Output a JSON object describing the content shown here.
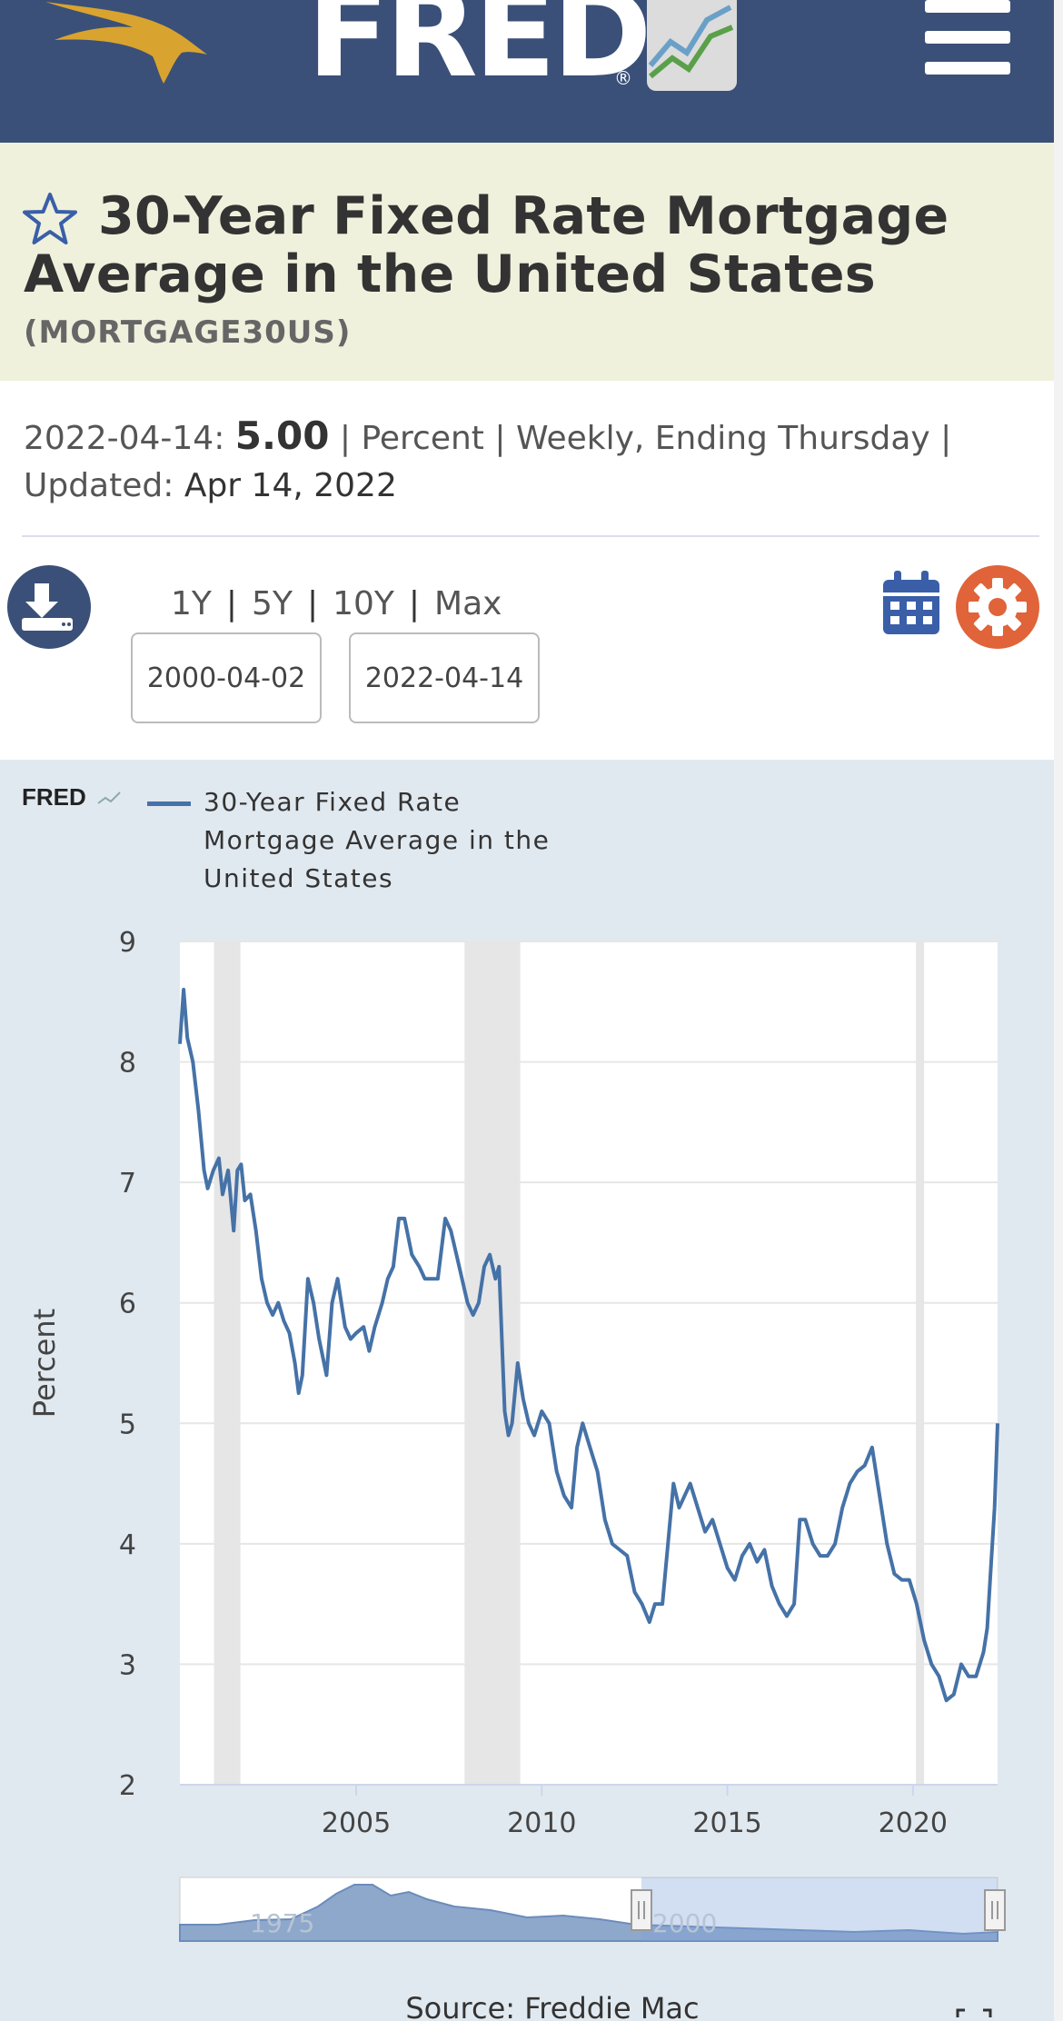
{
  "header": {
    "logo_text": "FRED",
    "logo_reg": "®",
    "colors": {
      "bg": "#3a5078",
      "eagle": "#d9a32f"
    }
  },
  "series": {
    "title": "30-Year Fixed Rate Mortgage Average in the United States",
    "id": "(MORTGAGE30US)"
  },
  "meta": {
    "date": "2022-04-14",
    "value": "5.00",
    "units": "Percent",
    "frequency": "Weekly, Ending Thursday",
    "updated_label": "Updated:",
    "updated": "Apr 14, 2022"
  },
  "controls": {
    "ranges": [
      "1Y",
      "5Y",
      "10Y",
      "Max"
    ],
    "start_date": "2000-04-02",
    "end_date": "2022-04-14"
  },
  "chart_data": {
    "type": "line",
    "brand": "FRED",
    "legend": [
      "30-Year Fixed Rate",
      "Mortgage Average in the",
      "United States"
    ],
    "ylabel": "Percent",
    "yticks": [
      "9",
      "8",
      "7",
      "6",
      "5",
      "4",
      "3",
      "2"
    ],
    "xticks": [
      "2005",
      "2010",
      "2015",
      "2020"
    ],
    "ylim": [
      2,
      9
    ],
    "xlim": [
      2000.25,
      2022.28
    ],
    "recessions": [
      [
        2001.17,
        2001.88
      ],
      [
        2007.92,
        2009.42
      ],
      [
        2020.08,
        2020.3
      ]
    ],
    "series": [
      {
        "color": "#4572a7",
        "x": [
          2000.25,
          2000.35,
          2000.45,
          2000.6,
          2000.75,
          2000.9,
          2001.0,
          2001.15,
          2001.3,
          2001.4,
          2001.55,
          2001.7,
          2001.8,
          2001.9,
          2002.0,
          2002.15,
          2002.3,
          2002.45,
          2002.6,
          2002.75,
          2002.9,
          2003.05,
          2003.2,
          2003.35,
          2003.45,
          2003.55,
          2003.7,
          2003.85,
          2004.0,
          2004.2,
          2004.35,
          2004.5,
          2004.7,
          2004.85,
          2005.0,
          2005.2,
          2005.35,
          2005.5,
          2005.7,
          2005.85,
          2006.0,
          2006.15,
          2006.3,
          2006.5,
          2006.7,
          2006.85,
          2007.0,
          2007.2,
          2007.4,
          2007.55,
          2007.7,
          2007.85,
          2008.0,
          2008.15,
          2008.3,
          2008.45,
          2008.6,
          2008.75,
          2008.85,
          2008.95,
          2009.0,
          2009.1,
          2009.2,
          2009.35,
          2009.5,
          2009.65,
          2009.8,
          2010.0,
          2010.2,
          2010.4,
          2010.6,
          2010.8,
          2010.95,
          2011.1,
          2011.3,
          2011.5,
          2011.7,
          2011.9,
          2012.1,
          2012.3,
          2012.5,
          2012.7,
          2012.9,
          2013.05,
          2013.25,
          2013.4,
          2013.55,
          2013.7,
          2013.85,
          2014.0,
          2014.2,
          2014.4,
          2014.6,
          2014.8,
          2015.0,
          2015.2,
          2015.4,
          2015.6,
          2015.8,
          2016.0,
          2016.2,
          2016.4,
          2016.6,
          2016.8,
          2016.95,
          2017.1,
          2017.3,
          2017.5,
          2017.7,
          2017.9,
          2018.1,
          2018.3,
          2018.5,
          2018.7,
          2018.9,
          2019.1,
          2019.3,
          2019.5,
          2019.7,
          2019.9,
          2020.1,
          2020.3,
          2020.5,
          2020.7,
          2020.9,
          2021.1,
          2021.3,
          2021.5,
          2021.7,
          2021.9,
          2022.0,
          2022.1,
          2022.2,
          2022.28
        ],
        "values": [
          8.15,
          8.6,
          8.2,
          8.0,
          7.6,
          7.1,
          6.95,
          7.1,
          7.2,
          6.9,
          7.1,
          6.6,
          7.1,
          7.15,
          6.85,
          6.9,
          6.6,
          6.2,
          6.0,
          5.9,
          6.0,
          5.85,
          5.75,
          5.5,
          5.25,
          5.4,
          6.2,
          6.0,
          5.7,
          5.4,
          6.0,
          6.2,
          5.8,
          5.7,
          5.75,
          5.8,
          5.6,
          5.8,
          6.0,
          6.2,
          6.3,
          6.7,
          6.7,
          6.4,
          6.3,
          6.2,
          6.2,
          6.2,
          6.7,
          6.6,
          6.4,
          6.2,
          6.0,
          5.9,
          6.0,
          6.3,
          6.4,
          6.2,
          6.3,
          5.5,
          5.1,
          4.9,
          5.0,
          5.5,
          5.2,
          5.0,
          4.9,
          5.1,
          5.0,
          4.6,
          4.4,
          4.3,
          4.8,
          5.0,
          4.8,
          4.6,
          4.2,
          4.0,
          3.95,
          3.9,
          3.6,
          3.5,
          3.35,
          3.5,
          3.5,
          4.0,
          4.5,
          4.3,
          4.4,
          4.5,
          4.3,
          4.1,
          4.2,
          4.0,
          3.8,
          3.7,
          3.9,
          4.0,
          3.85,
          3.95,
          3.65,
          3.5,
          3.4,
          3.5,
          4.2,
          4.2,
          4.0,
          3.9,
          3.9,
          4.0,
          4.3,
          4.5,
          4.6,
          4.65,
          4.8,
          4.4,
          4.0,
          3.75,
          3.7,
          3.7,
          3.5,
          3.2,
          3.0,
          2.9,
          2.7,
          2.75,
          3.0,
          2.9,
          2.9,
          3.1,
          3.3,
          3.8,
          4.3,
          5.0
        ]
      }
    ],
    "navigator": {
      "labels": [
        "1975",
        "2000"
      ]
    },
    "source": "Source: Freddie Mac"
  }
}
